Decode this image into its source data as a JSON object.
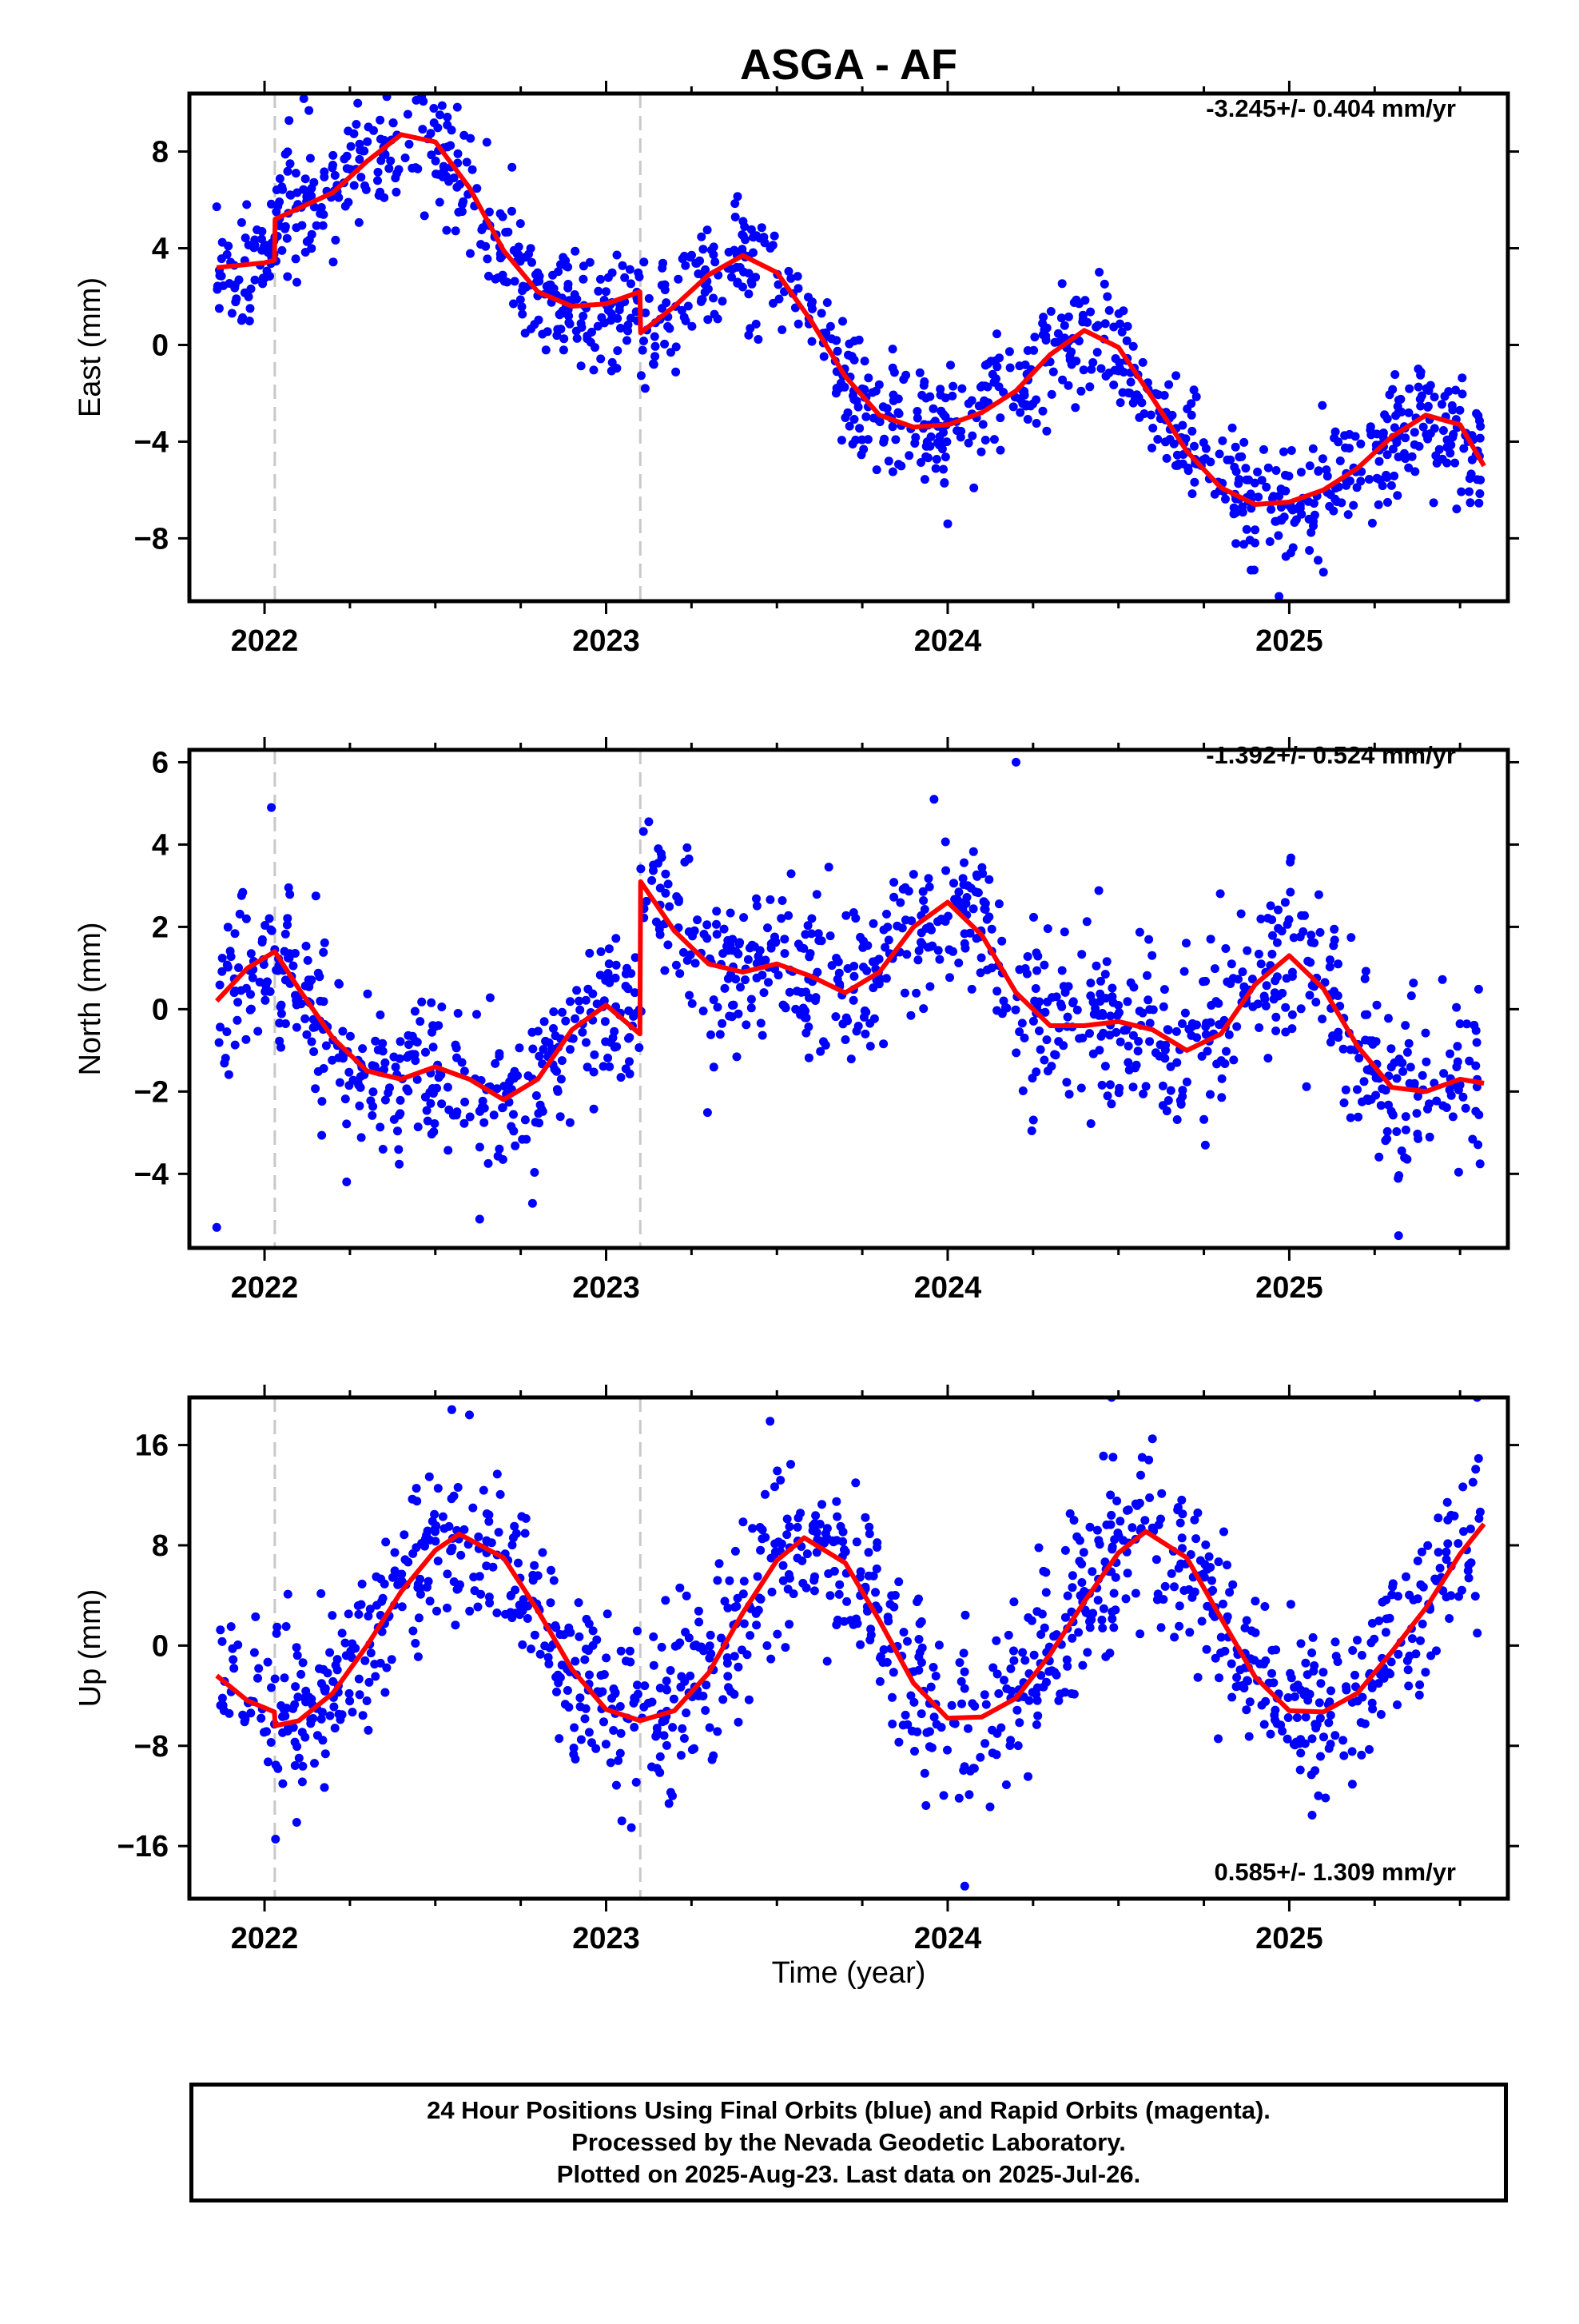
{
  "title": "ASGA - AF",
  "colors": {
    "points": "#0000ff",
    "fit": "#ff0000",
    "break_line": "#c8c8c8",
    "frame": "#000000"
  },
  "xlabel": "Time (year)",
  "footer": {
    "line1": "24 Hour Positions Using Final Orbits (blue) and Rapid Orbits (magenta).",
    "line2": "Processed by the Nevada Geodetic Laboratory.",
    "line3": "Plotted on 2025-Aug-23. Last data on 2025-Jul-26."
  },
  "chart_data": [
    {
      "type": "scatter",
      "component": "east",
      "ylabel": "East (mm)",
      "rate_label": "-3.245+/- 0.404 mm/yr",
      "xlim": [
        2021.78,
        2025.64
      ],
      "ylim": [
        -10.6,
        10.4
      ],
      "yticks": [
        -8,
        -4,
        0,
        4,
        8
      ],
      "yticklabels": [
        "−8",
        "−4",
        "0",
        "4",
        "8"
      ],
      "xticks": [
        2022,
        2023,
        2024,
        2025
      ],
      "xticklabels": [
        "2022",
        "2023",
        "2024",
        "2025"
      ],
      "breaks": [
        2022.03,
        2023.1
      ],
      "fit": [
        [
          2021.86,
          3.2
        ],
        [
          2022.0,
          3.4
        ],
        [
          2022.029,
          3.5
        ],
        [
          2022.031,
          5.2
        ],
        [
          2022.2,
          6.3
        ],
        [
          2022.3,
          7.6
        ],
        [
          2022.4,
          8.7
        ],
        [
          2022.5,
          8.4
        ],
        [
          2022.6,
          6.5
        ],
        [
          2022.7,
          3.9
        ],
        [
          2022.8,
          2.2
        ],
        [
          2022.9,
          1.6
        ],
        [
          2023.0,
          1.7
        ],
        [
          2023.099,
          2.2
        ],
        [
          2023.101,
          0.5
        ],
        [
          2023.2,
          1.6
        ],
        [
          2023.3,
          2.9
        ],
        [
          2023.4,
          3.7
        ],
        [
          2023.5,
          3.0
        ],
        [
          2023.6,
          1.0
        ],
        [
          2023.7,
          -1.3
        ],
        [
          2023.8,
          -2.9
        ],
        [
          2023.9,
          -3.4
        ],
        [
          2024.0,
          -3.3
        ],
        [
          2024.1,
          -2.8
        ],
        [
          2024.2,
          -1.9
        ],
        [
          2024.3,
          -0.4
        ],
        [
          2024.4,
          0.6
        ],
        [
          2024.5,
          -0.1
        ],
        [
          2024.6,
          -2.2
        ],
        [
          2024.7,
          -4.4
        ],
        [
          2024.8,
          -5.9
        ],
        [
          2024.9,
          -6.6
        ],
        [
          2025.0,
          -6.5
        ],
        [
          2025.1,
          -6.0
        ],
        [
          2025.2,
          -5.1
        ],
        [
          2025.3,
          -3.8
        ],
        [
          2025.4,
          -2.9
        ],
        [
          2025.5,
          -3.3
        ],
        [
          2025.57,
          -5.0
        ]
      ],
      "scatter": {
        "x_start": 2021.86,
        "x_end": 2025.56,
        "count": 1150,
        "noise_sd": 1.25,
        "seed": 11,
        "outliers": [
          [
            2022.13,
            9.7
          ],
          [
            2022.52,
            9.9
          ],
          [
            2024.97,
            -10.4
          ],
          [
            2024.0,
            -7.4
          ],
          [
            2025.1,
            -9.4
          ]
        ]
      }
    },
    {
      "type": "scatter",
      "component": "north",
      "ylabel": "North (mm)",
      "rate_label": "-1.392+/- 0.524 mm/yr",
      "xlim": [
        2021.78,
        2025.64
      ],
      "ylim": [
        -5.8,
        6.3
      ],
      "yticks": [
        -4,
        -2,
        0,
        2,
        4,
        6
      ],
      "yticklabels": [
        "−4",
        "−2",
        "0",
        "2",
        "4",
        "6"
      ],
      "xticks": [
        2022,
        2023,
        2024,
        2025
      ],
      "xticklabels": [
        "2022",
        "2023",
        "2024",
        "2025"
      ],
      "breaks": [
        2022.03,
        2023.1
      ],
      "fit": [
        [
          2021.86,
          0.2
        ],
        [
          2021.95,
          1.0
        ],
        [
          2022.03,
          1.4
        ],
        [
          2022.1,
          0.5
        ],
        [
          2022.2,
          -0.7
        ],
        [
          2022.3,
          -1.5
        ],
        [
          2022.4,
          -1.7
        ],
        [
          2022.5,
          -1.4
        ],
        [
          2022.6,
          -1.7
        ],
        [
          2022.7,
          -2.2
        ],
        [
          2022.8,
          -1.7
        ],
        [
          2022.9,
          -0.5
        ],
        [
          2023.0,
          0.1
        ],
        [
          2023.099,
          -0.6
        ],
        [
          2023.101,
          3.1
        ],
        [
          2023.2,
          1.9
        ],
        [
          2023.3,
          1.1
        ],
        [
          2023.4,
          0.9
        ],
        [
          2023.5,
          1.1
        ],
        [
          2023.6,
          0.8
        ],
        [
          2023.7,
          0.4
        ],
        [
          2023.8,
          0.9
        ],
        [
          2023.9,
          2.0
        ],
        [
          2024.0,
          2.6
        ],
        [
          2024.1,
          1.8
        ],
        [
          2024.2,
          0.4
        ],
        [
          2024.3,
          -0.4
        ],
        [
          2024.4,
          -0.4
        ],
        [
          2024.5,
          -0.3
        ],
        [
          2024.6,
          -0.5
        ],
        [
          2024.7,
          -1.0
        ],
        [
          2024.8,
          -0.6
        ],
        [
          2024.9,
          0.6
        ],
        [
          2025.0,
          1.3
        ],
        [
          2025.1,
          0.5
        ],
        [
          2025.2,
          -0.9
        ],
        [
          2025.3,
          -1.9
        ],
        [
          2025.4,
          -2.0
        ],
        [
          2025.5,
          -1.7
        ],
        [
          2025.57,
          -1.8
        ]
      ],
      "scatter": {
        "x_start": 2021.86,
        "x_end": 2025.56,
        "count": 1150,
        "noise_sd": 1.0,
        "seed": 23,
        "outliers": [
          [
            2021.86,
            -5.3
          ],
          [
            2022.02,
            4.9
          ],
          [
            2024.2,
            6.0
          ],
          [
            2023.96,
            5.1
          ],
          [
            2022.63,
            -5.1
          ],
          [
            2025.32,
            -5.5
          ]
        ]
      }
    },
    {
      "type": "scatter",
      "component": "up",
      "ylabel": "Up (mm)",
      "rate_label": "0.585+/- 1.309 mm/yr",
      "xlim": [
        2021.78,
        2025.64
      ],
      "ylim": [
        -20.2,
        19.8
      ],
      "yticks": [
        -16,
        -8,
        0,
        8,
        16
      ],
      "yticklabels": [
        "−16",
        "−8",
        "0",
        "8",
        "16"
      ],
      "xticks": [
        2022,
        2023,
        2024,
        2025
      ],
      "xticklabels": [
        "2022",
        "2023",
        "2024",
        "2025"
      ],
      "breaks": [
        2022.03,
        2023.1
      ],
      "fit": [
        [
          2021.86,
          -2.4
        ],
        [
          2021.95,
          -4.4
        ],
        [
          2022.029,
          -5.3
        ],
        [
          2022.031,
          -6.4
        ],
        [
          2022.1,
          -6.0
        ],
        [
          2022.2,
          -3.8
        ],
        [
          2022.3,
          0.0
        ],
        [
          2022.4,
          4.3
        ],
        [
          2022.5,
          7.6
        ],
        [
          2022.57,
          8.9
        ],
        [
          2022.7,
          7.0
        ],
        [
          2022.8,
          2.8
        ],
        [
          2022.9,
          -1.9
        ],
        [
          2023.0,
          -5.1
        ],
        [
          2023.1,
          -6.0
        ],
        [
          2023.2,
          -5.2
        ],
        [
          2023.3,
          -2.2
        ],
        [
          2023.4,
          2.6
        ],
        [
          2023.5,
          6.8
        ],
        [
          2023.58,
          8.6
        ],
        [
          2023.7,
          6.6
        ],
        [
          2023.8,
          2.0
        ],
        [
          2023.9,
          -3.0
        ],
        [
          2024.0,
          -5.8
        ],
        [
          2024.1,
          -5.7
        ],
        [
          2024.2,
          -4.2
        ],
        [
          2024.3,
          -0.7
        ],
        [
          2024.4,
          3.5
        ],
        [
          2024.5,
          7.4
        ],
        [
          2024.58,
          9.1
        ],
        [
          2024.7,
          7.0
        ],
        [
          2024.8,
          2.2
        ],
        [
          2024.9,
          -2.5
        ],
        [
          2025.0,
          -5.2
        ],
        [
          2025.1,
          -5.3
        ],
        [
          2025.2,
          -3.8
        ],
        [
          2025.3,
          -0.5
        ],
        [
          2025.4,
          3.0
        ],
        [
          2025.5,
          7.3
        ],
        [
          2025.57,
          9.7
        ]
      ],
      "scatter": {
        "x_start": 2021.86,
        "x_end": 2025.56,
        "count": 1150,
        "noise_sd": 3.4,
        "seed": 37,
        "outliers": [
          [
            2024.05,
            -19.2
          ],
          [
            2024.48,
            19.8
          ],
          [
            2025.55,
            19.8
          ],
          [
            2023.48,
            17.9
          ],
          [
            2022.6,
            18.4
          ]
        ]
      }
    }
  ]
}
